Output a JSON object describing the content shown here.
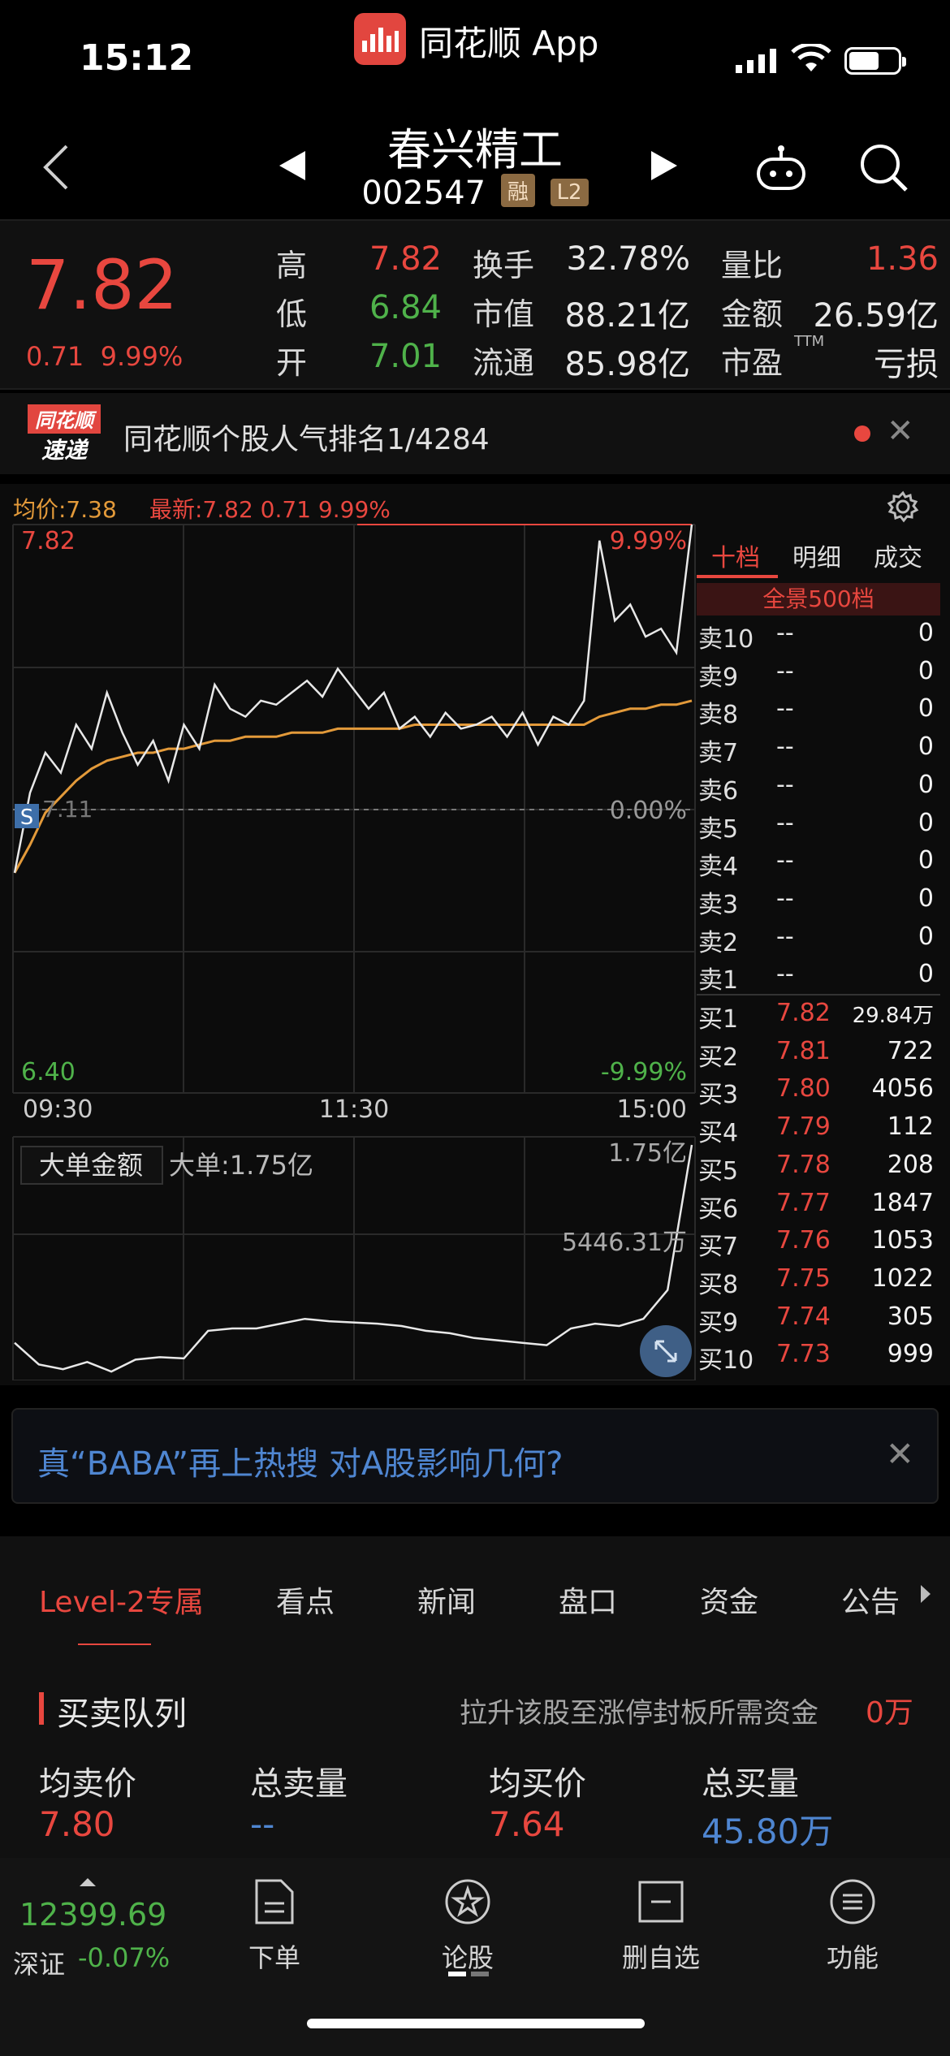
{
  "status": {
    "time": "15:12",
    "app_name": "同花顺 App"
  },
  "header": {
    "stock_name": "春兴精工",
    "stock_code": "002547",
    "tag_margin": "融",
    "tag_l2": "L2"
  },
  "quote": {
    "last_price": "7.82",
    "change": "0.71",
    "change_pct": "9.99%",
    "rows": [
      [
        {
          "label": "高",
          "value": "7.82",
          "color": "red"
        },
        {
          "label": "换手",
          "value": "32.78%",
          "color": "white"
        },
        {
          "label": "量比",
          "value": "1.36",
          "color": "red"
        }
      ],
      [
        {
          "label": "低",
          "value": "6.84",
          "color": "green"
        },
        {
          "label": "市值",
          "value": "88.21亿",
          "color": "white"
        },
        {
          "label": "金额",
          "value": "26.59亿",
          "color": "white"
        }
      ],
      [
        {
          "label": "开",
          "value": "7.01",
          "color": "green"
        },
        {
          "label": "流通",
          "value": "85.98亿",
          "color": "white"
        },
        {
          "label": "市盈",
          "sup": "TTM",
          "value": "亏损",
          "color": "white"
        }
      ]
    ]
  },
  "notice": {
    "logo_top": "同花顺",
    "logo_bottom": "速递",
    "text": "同花顺个股人气排名1/4284"
  },
  "chart": {
    "avg_label": "均价:7.38",
    "latest_label": "最新:7.82  0.71  9.99%",
    "price_high": "7.82",
    "price_low": "6.40",
    "pct_high": "9.99%",
    "pct_low": "-9.99%",
    "prev_close": "7.11",
    "pct_zero": "0.00%",
    "marker": "S",
    "time_labels": [
      "09:30",
      "11:30",
      "15:00"
    ],
    "lower_title": "大单金额",
    "lower_value": "大单:1.75亿",
    "lower_max": "1.75亿",
    "lower_mid": "5446.31万"
  },
  "chart_data": {
    "type": "line",
    "title": "",
    "x_range": [
      "09:30",
      "15:00"
    ],
    "ylim": [
      6.4,
      7.82
    ],
    "prev_close": 7.11,
    "series": [
      {
        "name": "",
        "color": "#e8e8e8",
        "values": [
          6.95,
          7.15,
          7.25,
          7.2,
          7.32,
          7.26,
          7.4,
          7.3,
          7.22,
          7.28,
          7.18,
          7.32,
          7.26,
          7.42,
          7.36,
          7.34,
          7.38,
          7.37,
          7.4,
          7.43,
          7.39,
          7.46,
          7.41,
          7.36,
          7.4,
          7.31,
          7.34,
          7.29,
          7.35,
          7.31,
          7.32,
          7.34,
          7.29,
          7.35,
          7.27,
          7.34,
          7.32,
          7.38,
          7.78,
          7.58,
          7.62,
          7.54,
          7.56,
          7.5,
          7.82
        ]
      },
      {
        "name": "均价",
        "color": "#e39a3a",
        "values": [
          6.95,
          7.02,
          7.1,
          7.14,
          7.18,
          7.21,
          7.23,
          7.24,
          7.25,
          7.25,
          7.26,
          7.26,
          7.27,
          7.28,
          7.28,
          7.29,
          7.29,
          7.29,
          7.3,
          7.3,
          7.3,
          7.31,
          7.31,
          7.31,
          7.31,
          7.31,
          7.32,
          7.32,
          7.32,
          7.32,
          7.32,
          7.32,
          7.32,
          7.32,
          7.32,
          7.32,
          7.32,
          7.32,
          7.34,
          7.35,
          7.36,
          7.36,
          7.37,
          7.37,
          7.38
        ]
      }
    ],
    "lower_series": {
      "name": "大单",
      "color": "#e8e8e8",
      "ylim": [
        -20,
        175
      ],
      "values": [
        10,
        -8,
        -12,
        -6,
        -14,
        -4,
        -2,
        -3,
        20,
        22,
        22,
        26,
        30,
        28,
        27,
        26,
        24,
        20,
        18,
        14,
        12,
        10,
        8,
        22,
        26,
        24,
        30,
        54,
        175
      ]
    }
  },
  "orderbook": {
    "tabs": [
      "十档",
      "明细",
      "成交"
    ],
    "panorama": "全景500档",
    "asks": [
      {
        "label": "卖10",
        "price": "--",
        "vol": "0"
      },
      {
        "label": "卖9",
        "price": "--",
        "vol": "0"
      },
      {
        "label": "卖8",
        "price": "--",
        "vol": "0"
      },
      {
        "label": "卖7",
        "price": "--",
        "vol": "0"
      },
      {
        "label": "卖6",
        "price": "--",
        "vol": "0"
      },
      {
        "label": "卖5",
        "price": "--",
        "vol": "0"
      },
      {
        "label": "卖4",
        "price": "--",
        "vol": "0"
      },
      {
        "label": "卖3",
        "price": "--",
        "vol": "0"
      },
      {
        "label": "卖2",
        "price": "--",
        "vol": "0"
      },
      {
        "label": "卖1",
        "price": "--",
        "vol": "0"
      }
    ],
    "bids": [
      {
        "label": "买1",
        "price": "7.82",
        "vol": "29.84万"
      },
      {
        "label": "买2",
        "price": "7.81",
        "vol": "722"
      },
      {
        "label": "买3",
        "price": "7.80",
        "vol": "4056"
      },
      {
        "label": "买4",
        "price": "7.79",
        "vol": "112"
      },
      {
        "label": "买5",
        "price": "7.78",
        "vol": "208"
      },
      {
        "label": "买6",
        "price": "7.77",
        "vol": "1847"
      },
      {
        "label": "买7",
        "price": "7.76",
        "vol": "1053"
      },
      {
        "label": "买8",
        "price": "7.75",
        "vol": "1022"
      },
      {
        "label": "买9",
        "price": "7.74",
        "vol": "305"
      },
      {
        "label": "买10",
        "price": "7.73",
        "vol": "999"
      }
    ]
  },
  "news": {
    "text": "真“BABA”再上热搜 对A股影响几何?"
  },
  "tabs": [
    "Level-2专属",
    "看点",
    "新闻",
    "盘口",
    "资金",
    "公告"
  ],
  "queue": {
    "title": "买卖队列",
    "subtitle": "拉升该股至涨停封板所需资金",
    "subtitle_value": "0万",
    "stats": [
      {
        "label": "均卖价",
        "value": "7.80",
        "color": "red"
      },
      {
        "label": "总卖量",
        "value": "--",
        "color": "blue"
      },
      {
        "label": "均买价",
        "value": "7.64",
        "color": "red"
      },
      {
        "label": "总买量",
        "value": "45.80万",
        "color": "blue"
      }
    ]
  },
  "bottom": {
    "index_value": "12399.69",
    "index_name": "深证",
    "index_change": "-0.07%",
    "nav": [
      "下单",
      "论股",
      "删自选",
      "功能"
    ]
  }
}
